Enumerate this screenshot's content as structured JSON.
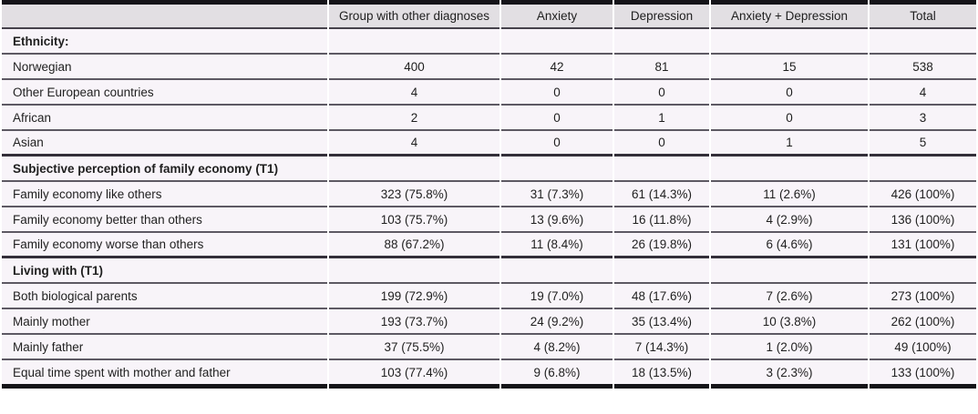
{
  "colors": {
    "header_bg": "#e2dfe3",
    "row_bg": "#f8f4f9",
    "frame_border": "#151419",
    "row_separator": "#5d5963",
    "section_separator": "#332f39",
    "text": "#1f1f1f"
  },
  "table": {
    "columns": [
      "",
      "Group with other diagnoses",
      "Anxiety",
      "Depression",
      "Anxiety + Depression",
      "Total"
    ],
    "sections": [
      {
        "title": "Ethnicity:",
        "rows": [
          {
            "label": "Norwegian",
            "values": [
              "400",
              "42",
              "81",
              "15",
              "538"
            ]
          },
          {
            "label": "Other European countries",
            "values": [
              "4",
              "0",
              "0",
              "0",
              "4"
            ]
          },
          {
            "label": "African",
            "values": [
              "2",
              "0",
              "1",
              "0",
              "3"
            ]
          },
          {
            "label": "Asian",
            "values": [
              "4",
              "0",
              "0",
              "1",
              "5"
            ]
          }
        ]
      },
      {
        "title": "Subjective perception of family economy (T1)",
        "rows": [
          {
            "label": "Family economy like others",
            "values": [
              "323 (75.8%)",
              "31 (7.3%)",
              "61 (14.3%)",
              "11 (2.6%)",
              "426 (100%)"
            ]
          },
          {
            "label": "Family economy better than others",
            "values": [
              "103 (75.7%)",
              "13 (9.6%)",
              "16 (11.8%)",
              "4 (2.9%)",
              "136 (100%)"
            ]
          },
          {
            "label": "Family economy worse than others",
            "values": [
              "88 (67.2%)",
              "11 (8.4%)",
              "26 (19.8%)",
              "6 (4.6%)",
              "131 (100%)"
            ]
          }
        ]
      },
      {
        "title": "Living with (T1)",
        "rows": [
          {
            "label": "Both biological parents",
            "values": [
              "199 (72.9%)",
              "19 (7.0%)",
              "48 (17.6%)",
              "7 (2.6%)",
              "273 (100%)"
            ]
          },
          {
            "label": "Mainly mother",
            "values": [
              "193 (73.7%)",
              "24 (9.2%)",
              "35 (13.4%)",
              "10 (3.8%)",
              "262 (100%)"
            ]
          },
          {
            "label": "Mainly father",
            "values": [
              "37 (75.5%)",
              "4 (8.2%)",
              "7 (14.3%)",
              "1 (2.0%)",
              "49 (100%)"
            ]
          },
          {
            "label": "Equal time spent with mother and father",
            "values": [
              "103 (77.4%)",
              "9 (6.8%)",
              "18 (13.5%)",
              "3 (2.3%)",
              "133 (100%)"
            ]
          }
        ]
      }
    ]
  }
}
